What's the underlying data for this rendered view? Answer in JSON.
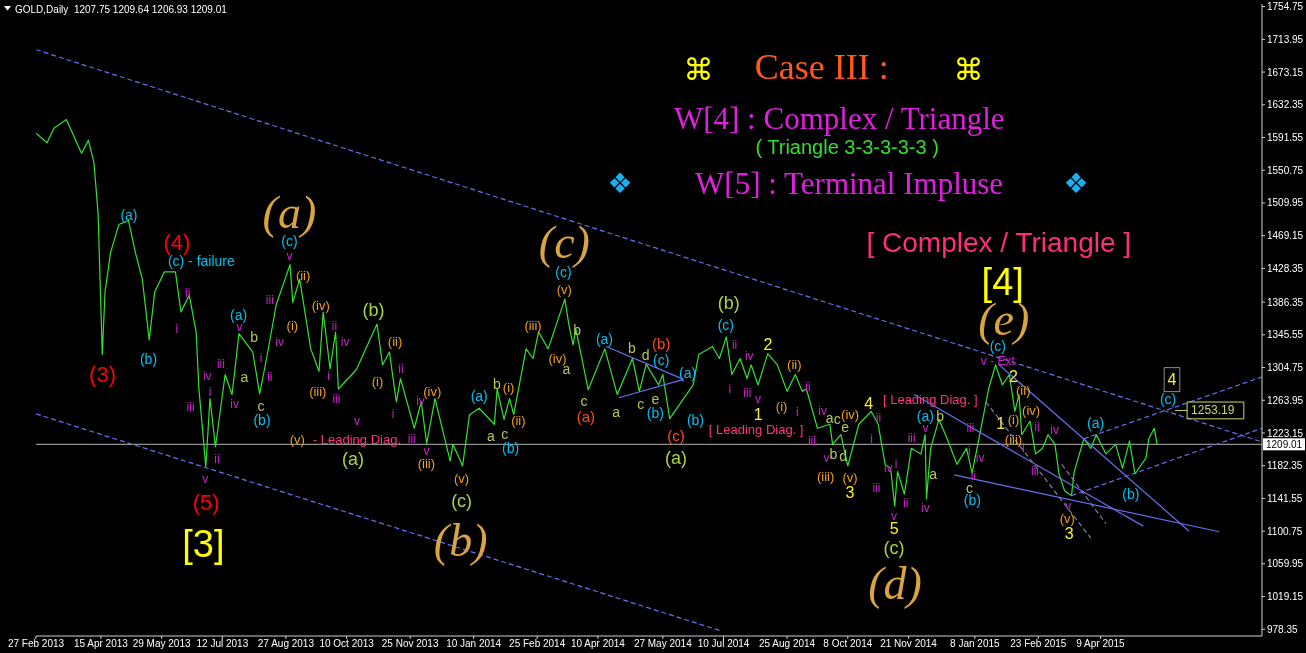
{
  "chart_data": {
    "type": "line",
    "title": "GOLD,Daily  1207.75 1209.64 1206.93 1209.01",
    "xlim": [
      "2013-02-27",
      "2015-08-04"
    ],
    "xticks": [
      {
        "value": "2013-02-27",
        "label": "27 Feb 2013"
      },
      {
        "value": "2013-04-15",
        "label": "15 Apr 2013"
      },
      {
        "value": "2013-05-29",
        "label": "29 May 2013"
      },
      {
        "value": "2013-07-12",
        "label": "12 Jul 2013"
      },
      {
        "value": "2013-08-27",
        "label": "27 Aug 2013"
      },
      {
        "value": "2013-10-10",
        "label": "10 Oct 2013"
      },
      {
        "value": "2013-11-25",
        "label": "25 Nov 2013"
      },
      {
        "value": "2014-01-10",
        "label": "10 Jan 2014"
      },
      {
        "value": "2014-02-25",
        "label": "25 Feb 2014"
      },
      {
        "value": "2014-04-10",
        "label": "10 Apr 2014"
      },
      {
        "value": "2014-05-27",
        "label": "27 May 2014"
      },
      {
        "value": "2014-07-10",
        "label": "10 Jul 2014"
      },
      {
        "value": "2014-08-25",
        "label": "25 Aug 2014"
      },
      {
        "value": "2014-10-08",
        "label": "8 Oct 2014"
      },
      {
        "value": "2014-11-21",
        "label": "21 Nov 2014"
      },
      {
        "value": "2015-01-08",
        "label": "8 Jan 2015"
      },
      {
        "value": "2015-02-23",
        "label": "23 Feb 2015"
      },
      {
        "value": "2015-04-09",
        "label": "9 Apr 2015"
      }
    ],
    "ylim": [
      970,
      1758
    ],
    "yticks": [
      978.35,
      1019.15,
      1059.95,
      1100.75,
      1141.55,
      1182.35,
      1223.15,
      1263.95,
      1304.75,
      1345.55,
      1386.35,
      1428.35,
      1469.15,
      1509.95,
      1550.75,
      1591.55,
      1632.35,
      1673.15,
      1713.95,
      1754.75
    ],
    "series": [
      {
        "color": "#33e033",
        "line_style": "solid",
        "x": [
          "2013-02-27",
          "2013-03-07",
          "2013-03-12",
          "2013-03-21",
          "2013-03-27",
          "2013-04-01",
          "2013-04-06",
          "2013-04-10",
          "2013-04-13",
          "2013-04-16",
          "2013-04-18",
          "2013-04-22",
          "2013-04-28",
          "2013-05-05",
          "2013-05-10",
          "2013-05-15",
          "2013-05-20",
          "2013-05-24",
          "2013-05-31",
          "2013-06-08",
          "2013-06-12",
          "2013-06-18",
          "2013-06-23",
          "2013-06-25",
          "2013-06-30",
          "2013-07-03",
          "2013-07-07",
          "2013-07-14",
          "2013-07-19",
          "2013-07-24",
          "2013-08-03",
          "2013-08-08",
          "2013-08-13",
          "2013-08-20",
          "2013-08-30",
          "2013-09-01",
          "2013-09-06",
          "2013-09-14",
          "2013-09-20",
          "2013-09-23",
          "2013-09-28",
          "2013-10-02",
          "2013-10-04",
          "2013-10-17",
          "2013-11-01",
          "2013-11-05",
          "2013-11-10",
          "2013-11-15",
          "2013-11-18",
          "2013-11-28",
          "2013-12-03",
          "2013-12-07",
          "2013-12-13",
          "2013-12-24",
          "2013-12-26",
          "2014-01-02",
          "2014-01-07",
          "2014-01-14",
          "2014-01-25",
          "2014-01-27",
          "2014-02-01",
          "2014-02-05",
          "2014-02-08",
          "2014-02-17",
          "2014-02-22",
          "2014-02-26",
          "2014-03-05",
          "2014-03-17",
          "2014-03-20",
          "2014-03-23",
          "2014-03-25",
          "2014-04-03",
          "2014-04-15",
          "2014-04-24",
          "2014-05-05",
          "2014-05-10",
          "2014-05-15",
          "2014-05-24",
          "2014-05-27",
          "2014-06-01",
          "2014-06-18",
          "2014-06-22",
          "2014-07-02",
          "2014-07-07",
          "2014-07-12",
          "2014-07-16",
          "2014-07-22",
          "2014-07-27",
          "2014-07-30",
          "2014-08-04",
          "2014-08-11",
          "2014-08-18",
          "2014-08-25",
          "2014-08-31",
          "2014-09-05",
          "2014-09-08",
          "2014-09-16",
          "2014-09-25",
          "2014-09-27",
          "2014-10-03",
          "2014-10-08",
          "2014-10-16",
          "2014-10-25",
          "2014-10-30",
          "2014-11-04",
          "2014-11-08",
          "2014-11-11",
          "2014-11-13",
          "2014-11-18",
          "2014-11-23",
          "2014-11-30",
          "2014-12-03",
          "2014-12-04",
          "2014-12-07",
          "2014-12-13",
          "2014-12-19",
          "2014-12-26",
          "2015-01-02",
          "2015-01-06",
          "2015-01-11",
          "2015-01-18",
          "2015-01-23",
          "2015-01-28",
          "2015-02-02",
          "2015-02-06",
          "2015-02-09",
          "2015-02-11",
          "2015-02-17",
          "2015-02-21",
          "2015-02-26",
          "2015-03-02",
          "2015-03-07",
          "2015-03-10",
          "2015-03-14",
          "2015-03-19",
          "2015-03-21",
          "2015-03-28",
          "2015-04-02",
          "2015-04-06",
          "2015-04-13",
          "2015-04-20",
          "2015-04-25",
          "2015-04-30",
          "2015-05-04",
          "2015-05-12",
          "2015-05-14",
          "2015-05-18",
          "2015-05-20"
        ],
        "values": [
          1597,
          1585,
          1603,
          1614,
          1591,
          1572,
          1588,
          1560,
          1496,
          1321,
          1399,
          1448,
          1483,
          1488,
          1448,
          1415,
          1339,
          1399,
          1424,
          1424,
          1374,
          1395,
          1349,
          1278,
          1181,
          1266,
          1206,
          1296,
          1271,
          1347,
          1324,
          1272,
          1316,
          1383,
          1433,
          1386,
          1415,
          1328,
          1300,
          1374,
          1303,
          1349,
          1278,
          1302,
          1359,
          1308,
          1324,
          1262,
          1291,
          1229,
          1262,
          1210,
          1266,
          1188,
          1209,
          1182,
          1246,
          1254,
          1234,
          1278,
          1240,
          1266,
          1246,
          1328,
          1316,
          1349,
          1328,
          1390,
          1358,
          1333,
          1353,
          1277,
          1328,
          1271,
          1316,
          1275,
          1309,
          1283,
          1296,
          1241,
          1283,
          1321,
          1331,
          1316,
          1343,
          1296,
          1316,
          1291,
          1308,
          1283,
          1322,
          1308,
          1275,
          1296,
          1275,
          1278,
          1229,
          1234,
          1209,
          1221,
          1182,
          1234,
          1250,
          1234,
          1184,
          1179,
          1132,
          1175,
          1147,
          1204,
          1197,
          1221,
          1141,
          1204,
          1240,
          1216,
          1184,
          1204,
          1173,
          1216,
          1278,
          1308,
          1283,
          1296,
          1250,
          1271,
          1221,
          1238,
          1197,
          1204,
          1221,
          1209,
          1172,
          1151,
          1145,
          1175,
          1216,
          1204,
          1221,
          1197,
          1209,
          1179,
          1213,
          1172,
          1192,
          1216,
          1229,
          1209
        ]
      },
      {
        "color": "#6670f0",
        "line_style": "dashed",
        "x": [
          "2013-02-27",
          "2015-08-04"
        ],
        "values": [
          1701,
          1212
        ]
      },
      {
        "color": "#6670f0",
        "line_style": "dashed",
        "x": [
          "2013-02-27",
          "2014-07-07"
        ],
        "values": [
          1247,
          977
        ]
      },
      {
        "color": "#6670f0",
        "line_style": "dashed",
        "x": [
          "2015-03-28",
          "2015-08-04"
        ],
        "values": [
          1216,
          1293
        ]
      },
      {
        "color": "#6670f0",
        "line_style": "dashed",
        "x": [
          "2015-03-19",
          "2015-08-04"
        ],
        "values": [
          1145,
          1229
        ]
      },
      {
        "color": "#6670f0",
        "line_style": "solid",
        "x": [
          "2014-04-16",
          "2014-06-11"
        ],
        "values": [
          1331,
          1290
        ]
      },
      {
        "color": "#6670f0",
        "line_style": "solid",
        "x": [
          "2014-04-25",
          "2014-06-11"
        ],
        "values": [
          1267,
          1290
        ]
      },
      {
        "color": "#6670f0",
        "line_style": "solid",
        "x": [
          "2014-11-25",
          "2015-05-10"
        ],
        "values": [
          1271,
          1107
        ]
      },
      {
        "color": "#6670f0",
        "line_style": "solid",
        "x": [
          "2014-12-24",
          "2015-07-04"
        ],
        "values": [
          1171,
          1100
        ]
      },
      {
        "color": "#6670f0",
        "line_style": "solid",
        "x": [
          "2015-01-25",
          "2015-06-12"
        ],
        "values": [
          1309,
          1101
        ]
      },
      {
        "color": "#7c7ca8",
        "line_style": "dashed",
        "x": [
          "2015-01-16",
          "2015-04-02"
        ],
        "values": [
          1262,
          1092
        ]
      },
      {
        "color": "#7c7ca8",
        "line_style": "dashed",
        "x": [
          "2015-03-12",
          "2015-04-13"
        ],
        "values": [
          1184,
          1110
        ]
      }
    ],
    "ref_lines": [
      {
        "axis": "y",
        "value": 1209.01,
        "label": "1209.01",
        "color": "#b4b4b4",
        "line_style": "solid"
      }
    ],
    "annotations": [
      "⌘",
      "Case III :",
      "⌘",
      "W[4] : Complex / Triangle",
      "( Triangle 3-3-3-3-3 )",
      "❖",
      "W[5] : Terminal Impluse",
      "❖",
      "[ Complex / Triangle ]",
      "(3)",
      "(a)",
      "(4)",
      "(c) - failure",
      "ii",
      "i",
      "(b)",
      "iv",
      "iii",
      "i",
      "v",
      "ii",
      "(5)",
      "[3]",
      "iii",
      "iv",
      "(a)",
      "v",
      "a",
      "b",
      "i",
      "ii",
      "c",
      "(b)",
      "iii",
      "iv",
      "(a)",
      "(c)",
      "v",
      "(ii)",
      "(i)",
      "(iv)",
      "ii",
      "i",
      "(iii)",
      "iii",
      "iv",
      "(v)",
      "- Leading Diag.",
      "iii",
      "(a)",
      "v",
      "(b)",
      "(ii)",
      "(i)",
      "ii",
      "i",
      "iv",
      "(iv)",
      "v",
      "(iii)",
      "(v)",
      "(c)",
      "(b)",
      "(a)",
      "a",
      "b",
      "c",
      "(i)",
      "(ii)",
      "(b)",
      "(iii)",
      "(iv)",
      "a",
      "(v)",
      "(c)",
      "(c)",
      "b",
      "c",
      "(a)",
      "(a)",
      "a",
      "b",
      "c",
      "d",
      "e",
      "(b)",
      "(c)",
      "(b)",
      "(c)",
      "(a)",
      "(a)",
      "(b)",
      "(b)",
      "(c)",
      "ii",
      "i",
      "iv",
      "iii",
      "v",
      "2",
      "1",
      "(ii)",
      "(i)",
      "ii",
      "i",
      "[ Leading Diag. ]",
      "iii",
      "iv",
      "a",
      "c",
      "e",
      "(iv)",
      "b",
      "d",
      "v",
      "(iii)",
      "(v)",
      "3",
      "4",
      "ii",
      "i",
      "iv",
      "i",
      "iii",
      "ii",
      "v",
      "5",
      "(c)",
      "(d)",
      "iii",
      "(a)",
      "v",
      "b",
      "a",
      "iv",
      "[ Leading Diag. ]",
      "iii",
      "i",
      "iv",
      "ii",
      "c",
      "(b)",
      "[4]",
      "(e)",
      "(c)",
      "v - Ext",
      "2",
      "(ii)",
      "(iv)",
      "1",
      "(i)",
      "ii",
      "iv",
      "(iii)",
      "i",
      "iii",
      "v",
      "(v)",
      "3",
      "(a)",
      "(b)",
      "(c)",
      "4",
      "1253.19"
    ]
  }
}
